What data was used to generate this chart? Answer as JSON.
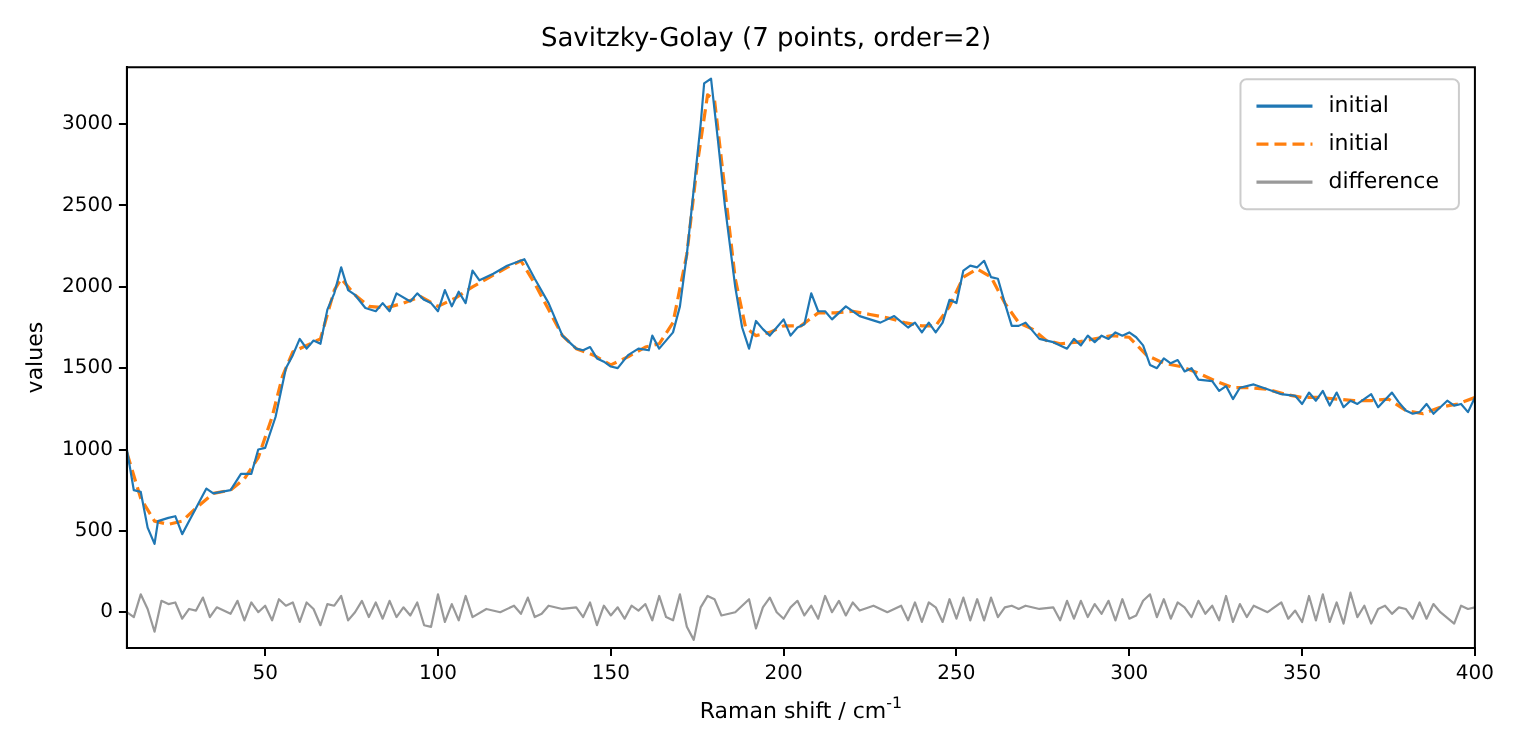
{
  "chart_data": {
    "type": "line",
    "title": "Savitzky-Golay (7 points, order=2)",
    "xlabel": "Raman shift / cm$^{-1}$",
    "ylabel": "values",
    "xlim": [
      10,
      400
    ],
    "ylim": [
      -220,
      3350
    ],
    "xticks": [
      50,
      100,
      150,
      200,
      250,
      300,
      350,
      400
    ],
    "yticks": [
      0,
      500,
      1000,
      1500,
      2000,
      2500,
      3000
    ],
    "grid": false,
    "legend": "top right",
    "series": [
      {
        "name": "initial",
        "color": "#1f77b4",
        "line_style": "solid",
        "x": [
          10,
          12,
          14,
          16,
          18,
          19,
          22,
          24,
          26,
          28,
          31,
          33,
          35,
          40,
          43,
          46,
          48,
          50,
          53,
          56,
          58,
          60,
          62,
          64,
          66,
          68,
          70,
          72,
          74,
          76,
          79,
          82,
          84,
          86,
          88,
          92,
          94,
          96,
          98,
          100,
          102,
          104,
          106,
          108,
          110,
          112,
          116,
          120,
          125,
          128,
          132,
          136,
          140,
          142,
          144,
          146,
          148,
          150,
          152,
          155,
          158,
          161,
          162,
          164,
          168,
          170,
          172,
          174,
          176,
          177,
          179,
          181,
          183,
          186,
          188,
          190,
          192,
          194,
          196,
          198,
          200,
          202,
          204,
          206,
          208,
          210,
          212,
          214,
          218,
          222,
          228,
          232,
          236,
          238,
          240,
          242,
          244,
          246,
          248,
          250,
          252,
          254,
          256,
          258,
          260,
          262,
          264,
          266,
          268,
          270,
          274,
          278,
          282,
          284,
          286,
          288,
          290,
          292,
          294,
          296,
          298,
          300,
          302,
          304,
          306,
          308,
          310,
          312,
          314,
          316,
          318,
          320,
          324,
          326,
          328,
          330,
          332,
          336,
          340,
          344,
          348,
          350,
          352,
          354,
          356,
          358,
          360,
          362,
          364,
          366,
          370,
          372,
          376,
          378,
          380,
          382,
          384,
          386,
          388,
          392,
          394,
          396,
          398,
          400
        ],
        "values": [
          1000,
          750,
          740,
          520,
          420,
          560,
          580,
          590,
          480,
          560,
          680,
          760,
          730,
          750,
          850,
          850,
          1000,
          1010,
          1200,
          1500,
          1580,
          1680,
          1620,
          1670,
          1650,
          1860,
          1960,
          2120,
          1980,
          1950,
          1870,
          1850,
          1900,
          1850,
          1960,
          1910,
          1960,
          1920,
          1900,
          1850,
          1980,
          1880,
          1970,
          1900,
          2100,
          2040,
          2080,
          2130,
          2170,
          2050,
          1900,
          1700,
          1620,
          1610,
          1630,
          1560,
          1540,
          1510,
          1500,
          1580,
          1620,
          1610,
          1700,
          1620,
          1720,
          1880,
          2200,
          2600,
          3000,
          3250,
          3280,
          2900,
          2500,
          2000,
          1750,
          1620,
          1790,
          1740,
          1700,
          1750,
          1800,
          1700,
          1750,
          1770,
          1960,
          1850,
          1850,
          1800,
          1880,
          1820,
          1780,
          1820,
          1750,
          1780,
          1720,
          1780,
          1720,
          1780,
          1920,
          1900,
          2100,
          2130,
          2120,
          2160,
          2060,
          2050,
          1900,
          1760,
          1760,
          1780,
          1680,
          1660,
          1620,
          1680,
          1640,
          1700,
          1660,
          1700,
          1680,
          1720,
          1700,
          1720,
          1690,
          1640,
          1520,
          1500,
          1560,
          1530,
          1550,
          1480,
          1500,
          1430,
          1420,
          1360,
          1390,
          1310,
          1380,
          1400,
          1370,
          1340,
          1330,
          1280,
          1350,
          1300,
          1360,
          1270,
          1350,
          1260,
          1300,
          1280,
          1340,
          1260,
          1350,
          1290,
          1240,
          1220,
          1230,
          1280,
          1220,
          1300,
          1270,
          1280,
          1230,
          1320
        ]
      },
      {
        "name": "initial",
        "color": "#ff7f0e",
        "line_style": "dashed",
        "x": [
          10,
          14,
          18,
          22,
          26,
          30,
          35,
          40,
          44,
          48,
          52,
          55,
          58,
          62,
          66,
          70,
          72,
          76,
          80,
          85,
          90,
          95,
          100,
          105,
          110,
          115,
          120,
          124,
          128,
          132,
          136,
          140,
          145,
          150,
          155,
          160,
          164,
          168,
          172,
          175,
          178,
          180,
          183,
          186,
          189,
          192,
          196,
          200,
          205,
          210,
          215,
          220,
          225,
          230,
          235,
          240,
          244,
          248,
          252,
          256,
          260,
          264,
          268,
          272,
          276,
          280,
          285,
          290,
          295,
          300,
          305,
          310,
          315,
          320,
          325,
          330,
          335,
          340,
          345,
          350,
          355,
          360,
          365,
          370,
          375,
          380,
          385,
          390,
          395,
          400
        ],
        "values": [
          980,
          700,
          560,
          540,
          560,
          640,
          730,
          750,
          820,
          950,
          1200,
          1450,
          1600,
          1640,
          1680,
          1980,
          2050,
          1950,
          1880,
          1870,
          1900,
          1940,
          1880,
          1930,
          2000,
          2060,
          2120,
          2160,
          2020,
          1860,
          1700,
          1620,
          1580,
          1520,
          1570,
          1630,
          1650,
          1780,
          2200,
          2750,
          3180,
          3150,
          2600,
          2050,
          1750,
          1700,
          1720,
          1760,
          1760,
          1840,
          1840,
          1850,
          1830,
          1810,
          1780,
          1760,
          1760,
          1880,
          2060,
          2110,
          2060,
          1900,
          1780,
          1740,
          1670,
          1650,
          1660,
          1680,
          1700,
          1690,
          1580,
          1530,
          1510,
          1470,
          1420,
          1380,
          1380,
          1370,
          1340,
          1320,
          1320,
          1310,
          1300,
          1300,
          1310,
          1240,
          1220,
          1260,
          1280,
          1320
        ]
      },
      {
        "name": "difference",
        "color": "#999999",
        "line_style": "solid",
        "x": [
          10,
          12,
          14,
          16,
          18,
          20,
          22,
          24,
          26,
          28,
          30,
          32,
          34,
          36,
          38,
          40,
          42,
          44,
          46,
          48,
          50,
          52,
          54,
          56,
          58,
          60,
          62,
          64,
          66,
          68,
          70,
          72,
          74,
          76,
          78,
          80,
          82,
          84,
          86,
          88,
          90,
          92,
          94,
          96,
          98,
          100,
          102,
          104,
          106,
          108,
          110,
          114,
          118,
          122,
          124,
          126,
          128,
          130,
          132,
          136,
          140,
          142,
          144,
          146,
          148,
          150,
          152,
          154,
          156,
          158,
          160,
          162,
          164,
          166,
          168,
          170,
          172,
          174,
          176,
          178,
          180,
          182,
          186,
          190,
          192,
          194,
          196,
          198,
          200,
          202,
          204,
          206,
          208,
          210,
          212,
          214,
          216,
          218,
          220,
          222,
          226,
          230,
          234,
          236,
          238,
          240,
          242,
          244,
          246,
          248,
          250,
          252,
          254,
          256,
          258,
          260,
          262,
          264,
          266,
          268,
          270,
          274,
          278,
          280,
          282,
          284,
          286,
          288,
          290,
          292,
          294,
          296,
          298,
          300,
          302,
          304,
          306,
          308,
          310,
          312,
          314,
          316,
          318,
          320,
          322,
          324,
          326,
          328,
          330,
          332,
          334,
          336,
          340,
          344,
          346,
          348,
          350,
          352,
          354,
          356,
          358,
          360,
          362,
          364,
          366,
          368,
          370,
          372,
          374,
          376,
          378,
          380,
          382,
          384,
          386,
          388,
          390,
          394,
          396,
          398,
          400
        ],
        "values": [
          0,
          -30,
          110,
          20,
          -120,
          70,
          50,
          60,
          -40,
          20,
          10,
          90,
          -30,
          30,
          10,
          -10,
          70,
          -50,
          60,
          0,
          40,
          -50,
          80,
          40,
          60,
          -60,
          60,
          20,
          -80,
          50,
          40,
          100,
          -50,
          0,
          70,
          -30,
          60,
          -40,
          70,
          -30,
          30,
          -20,
          60,
          -80,
          -90,
          110,
          -60,
          50,
          -50,
          100,
          -30,
          20,
          0,
          40,
          -10,
          90,
          -30,
          -10,
          40,
          20,
          30,
          -30,
          60,
          -80,
          40,
          -20,
          30,
          -40,
          40,
          10,
          50,
          -50,
          100,
          -30,
          -50,
          110,
          -90,
          -170,
          30,
          100,
          80,
          -20,
          0,
          80,
          -100,
          30,
          90,
          0,
          -40,
          30,
          70,
          -20,
          40,
          -40,
          100,
          0,
          70,
          -20,
          60,
          10,
          40,
          0,
          40,
          -50,
          60,
          -60,
          60,
          30,
          -60,
          80,
          -40,
          90,
          -50,
          80,
          -50,
          90,
          -30,
          30,
          40,
          20,
          40,
          20,
          30,
          -50,
          70,
          -40,
          70,
          -30,
          50,
          -10,
          70,
          -50,
          80,
          -40,
          -20,
          70,
          110,
          -30,
          80,
          -40,
          60,
          30,
          -30,
          70,
          -10,
          40,
          -50,
          100,
          -60,
          50,
          -30,
          40,
          0,
          60,
          -40,
          10,
          -60,
          100,
          -50,
          110,
          -60,
          60,
          -70,
          120,
          -30,
          40,
          -70,
          20,
          40,
          -10,
          30,
          20,
          -40,
          60,
          -40,
          50,
          0,
          -70,
          40,
          20,
          30
        ]
      }
    ]
  }
}
